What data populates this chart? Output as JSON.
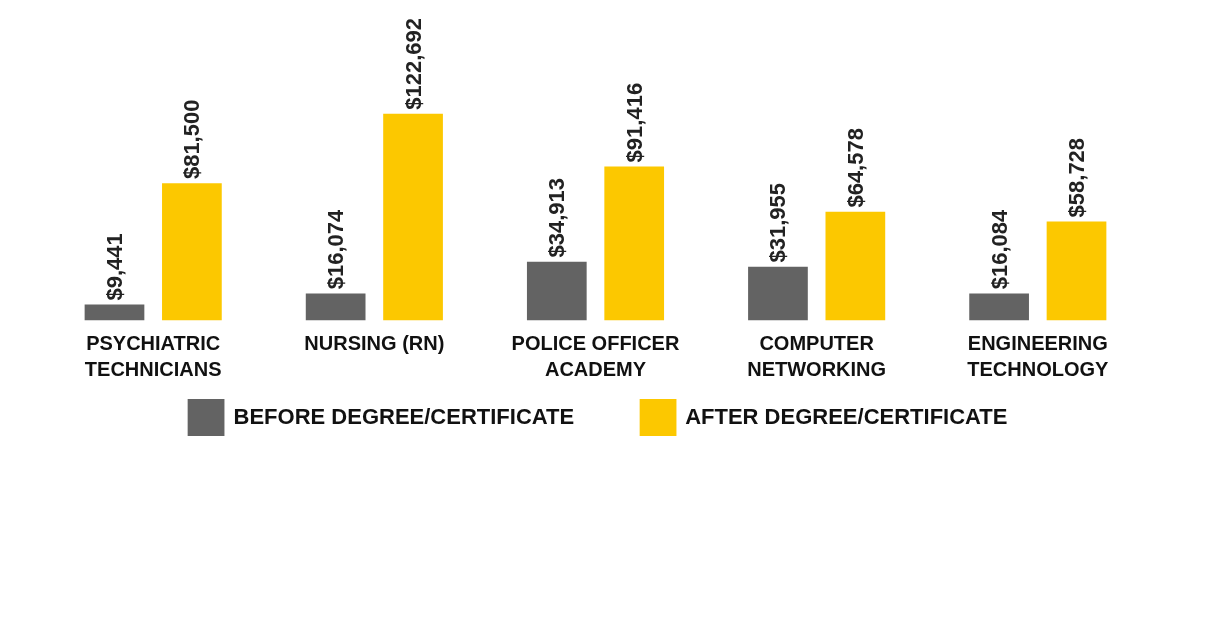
{
  "chart_data": {
    "type": "bar",
    "categories": [
      "PSYCHIATRIC\nTECHNICIANS",
      "NURSING (RN)",
      "POLICE OFFICER\nACADEMY",
      "COMPUTER\nNETWORKING",
      "ENGINEERING\nTECHNOLOGY"
    ],
    "series": [
      {
        "name": "BEFORE DEGREE/CERTIFICATE",
        "color": "#636363",
        "values": [
          9441,
          16074,
          34913,
          31955,
          16084
        ],
        "value_labels": [
          "$9,441",
          "$16,074",
          "$34,913",
          "$31,955",
          "$16,084"
        ]
      },
      {
        "name": "AFTER DEGREE/CERTIFICATE",
        "color": "#fcc800",
        "values": [
          81500,
          122692,
          91416,
          64578,
          58728
        ],
        "value_labels": [
          "$81,500",
          "$122,692",
          "$91,416",
          "$64,578",
          "$58,728"
        ]
      }
    ],
    "legend": "bottom",
    "grid": false,
    "tick_labels": "x"
  }
}
